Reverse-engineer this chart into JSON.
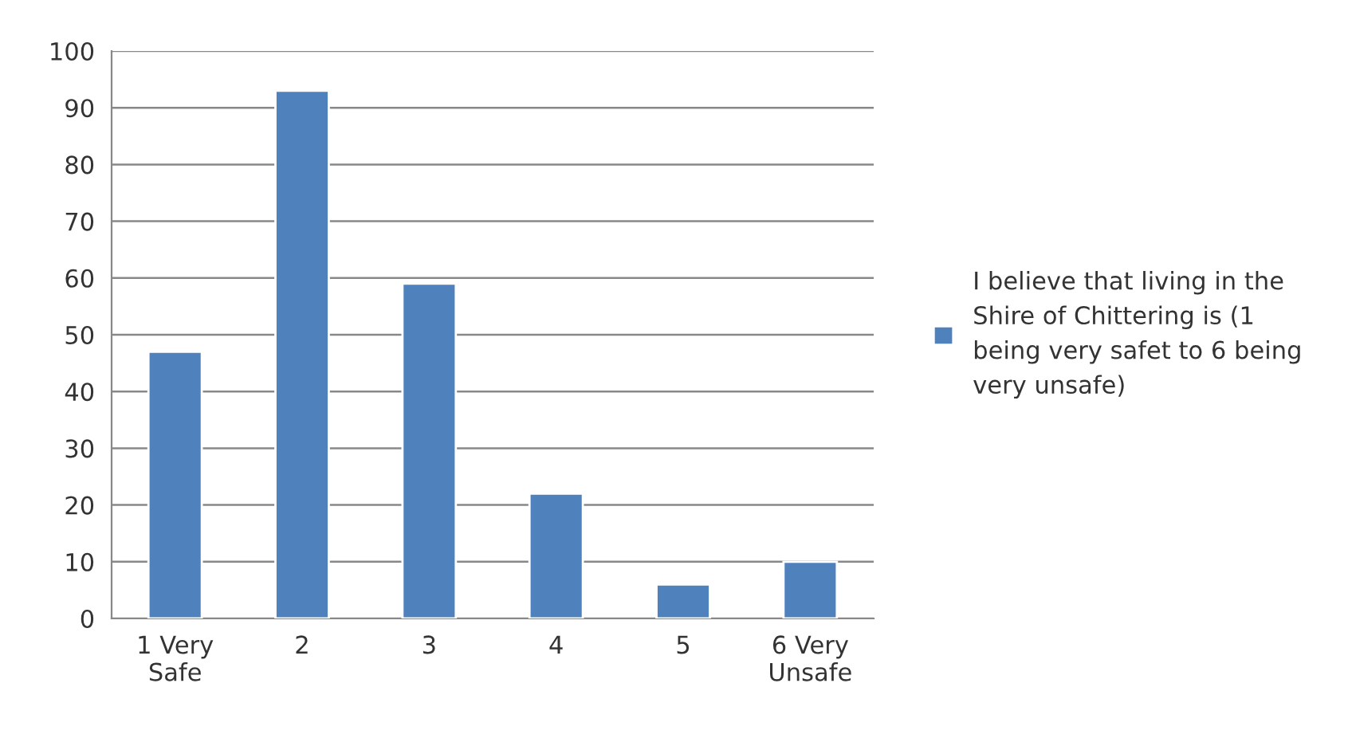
{
  "chart_data": {
    "type": "bar",
    "categories": [
      "1 Very\nSafe",
      "2",
      "3",
      "4",
      "5",
      "6 Very\nUnsafe"
    ],
    "series": [
      {
        "name": "I believe that living in the\nShire of Chittering is (1\nbeing very safet to 6 being\nvery unsafe)",
        "color": "#4f81bd",
        "values": [
          47,
          93,
          59,
          22,
          6,
          10
        ]
      }
    ],
    "ylim": [
      0,
      100
    ],
    "yticks": [
      0,
      10,
      20,
      30,
      40,
      50,
      60,
      70,
      80,
      90,
      100
    ],
    "grid": "y",
    "legend": "right"
  }
}
